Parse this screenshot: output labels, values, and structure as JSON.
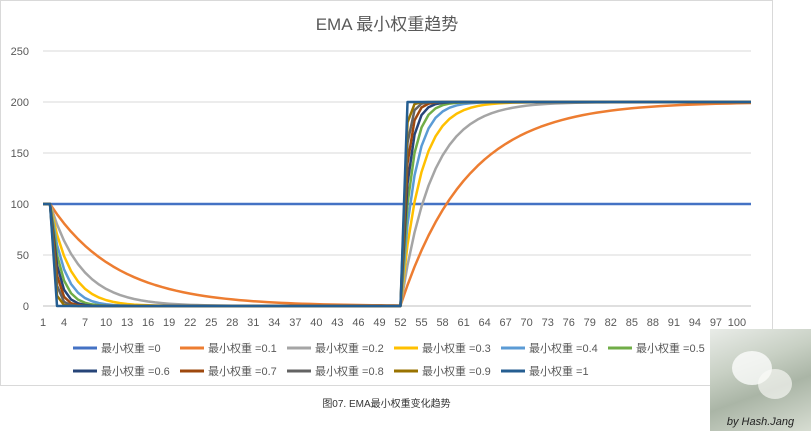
{
  "caption": "图07. EMA最小权重变化趋势",
  "photo_credit": "by Hash.Jang",
  "chart_data": {
    "type": "line",
    "title": "EMA 最小权重趋势",
    "xlabel": "",
    "ylabel": "",
    "ylim": [
      0,
      250
    ],
    "yticks": [
      0,
      50,
      100,
      150,
      200,
      250
    ],
    "xlim": [
      1,
      102
    ],
    "xticks": [
      1,
      4,
      7,
      10,
      13,
      16,
      19,
      22,
      25,
      28,
      31,
      34,
      37,
      40,
      43,
      46,
      49,
      52,
      55,
      58,
      61,
      64,
      67,
      70,
      73,
      76,
      79,
      82,
      85,
      88,
      91,
      94,
      97,
      100
    ],
    "grid": true,
    "legend_position": "bottom",
    "signal": {
      "initial": 100,
      "low_value": 0,
      "low_from": 3,
      "high_value": 200,
      "high_from": 53,
      "x_end": 102
    },
    "series": [
      {
        "name": "最小权重 =0",
        "alpha": 0,
        "color": "#4472c4"
      },
      {
        "name": "最小权重 =0.1",
        "alpha": 0.1,
        "color": "#ed7d31"
      },
      {
        "name": "最小权重 =0.2",
        "alpha": 0.2,
        "color": "#a5a5a5"
      },
      {
        "name": "最小权重 =0.3",
        "alpha": 0.3,
        "color": "#ffc000"
      },
      {
        "name": "最小权重 =0.4",
        "alpha": 0.4,
        "color": "#5b9bd5"
      },
      {
        "name": "最小权重 =0.5",
        "alpha": 0.5,
        "color": "#70ad47"
      },
      {
        "name": "最小权重 =0.6",
        "alpha": 0.6,
        "color": "#264478"
      },
      {
        "name": "最小权重 =0.7",
        "alpha": 0.7,
        "color": "#9e480e"
      },
      {
        "name": "最小权重 =0.8",
        "alpha": 0.8,
        "color": "#636363"
      },
      {
        "name": "最小权重 =0.9",
        "alpha": 0.9,
        "color": "#997300"
      },
      {
        "name": "最小权重 =1",
        "alpha": 1,
        "color": "#255e91"
      }
    ]
  }
}
